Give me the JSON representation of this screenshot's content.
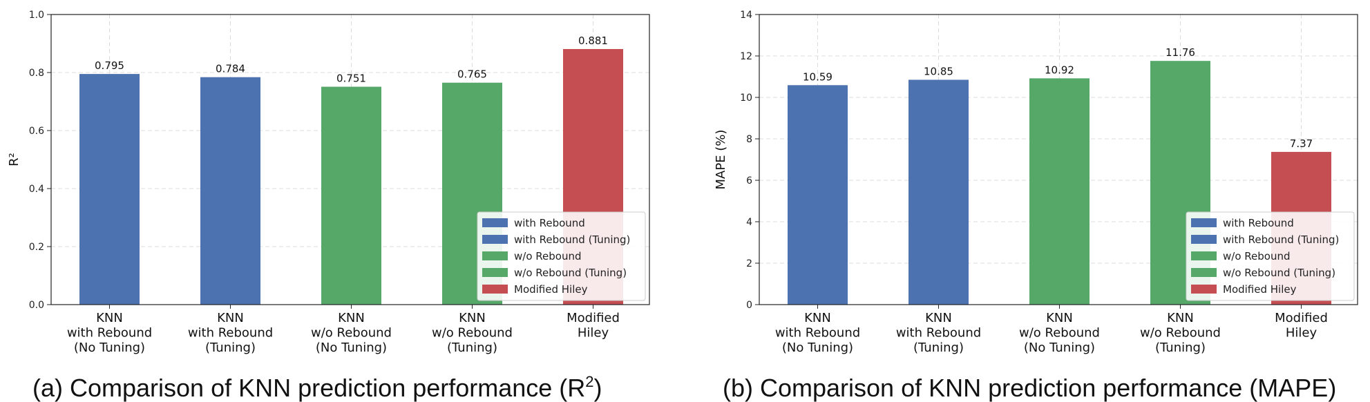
{
  "chart_data": [
    {
      "type": "bar",
      "title": "",
      "caption": {
        "prefix": "(a) Comparison of KNN prediction performance (R",
        "superscript": "2",
        "suffix": ")"
      },
      "xlabel": "",
      "ylabel": "R²",
      "ylim": [
        0,
        1.0
      ],
      "yticks": [
        "0.0",
        "0.2",
        "0.4",
        "0.6",
        "0.8",
        "1.0"
      ],
      "ytick_values": [
        0,
        0.2,
        0.4,
        0.6,
        0.8,
        1.0
      ],
      "grid": true,
      "legend_position": "bottom-right",
      "categories": [
        [
          "KNN",
          "with Rebound",
          "(No Tuning)"
        ],
        [
          "KNN",
          "with Rebound",
          "(Tuning)"
        ],
        [
          "KNN",
          "w/o Rebound",
          "(No Tuning)"
        ],
        [
          "KNN",
          "w/o Rebound",
          "(Tuning)"
        ],
        [
          "Modified",
          "Hiley"
        ]
      ],
      "values": [
        0.795,
        0.784,
        0.751,
        0.765,
        0.881
      ],
      "value_labels": [
        "0.795",
        "0.784",
        "0.751",
        "0.765",
        "0.881"
      ],
      "bar_colors": [
        "#4c72b0",
        "#4c72b0",
        "#55a868",
        "#55a868",
        "#c44e52"
      ],
      "legend": [
        {
          "label": "with Rebound",
          "color": "#4c72b0"
        },
        {
          "label": "with Rebound (Tuning)",
          "color": "#4c72b0"
        },
        {
          "label": "w/o Rebound",
          "color": "#55a868"
        },
        {
          "label": "w/o Rebound (Tuning)",
          "color": "#55a868"
        },
        {
          "label": "Modified Hiley",
          "color": "#c44e52"
        }
      ]
    },
    {
      "type": "bar",
      "title": "",
      "caption": {
        "prefix": "(b) Comparison of KNN prediction performance (MAPE)",
        "superscript": "",
        "suffix": ""
      },
      "xlabel": "",
      "ylabel": "MAPE (%)",
      "ylim": [
        0,
        14
      ],
      "yticks": [
        "0",
        "2",
        "4",
        "6",
        "8",
        "10",
        "12",
        "14"
      ],
      "ytick_values": [
        0,
        2,
        4,
        6,
        8,
        10,
        12,
        14
      ],
      "grid": true,
      "legend_position": "bottom-right",
      "categories": [
        [
          "KNN",
          "with Rebound",
          "(No Tuning)"
        ],
        [
          "KNN",
          "with Rebound",
          "(Tuning)"
        ],
        [
          "KNN",
          "w/o Rebound",
          "(No Tuning)"
        ],
        [
          "KNN",
          "w/o Rebound",
          "(Tuning)"
        ],
        [
          "Modified",
          "Hiley"
        ]
      ],
      "values": [
        10.59,
        10.85,
        10.92,
        11.76,
        7.37
      ],
      "value_labels": [
        "10.59",
        "10.85",
        "10.92",
        "11.76",
        "7.37"
      ],
      "bar_colors": [
        "#4c72b0",
        "#4c72b0",
        "#55a868",
        "#55a868",
        "#c44e52"
      ],
      "legend": [
        {
          "label": "with Rebound",
          "color": "#4c72b0"
        },
        {
          "label": "with Rebound (Tuning)",
          "color": "#4c72b0"
        },
        {
          "label": "w/o Rebound",
          "color": "#55a868"
        },
        {
          "label": "w/o Rebound (Tuning)",
          "color": "#55a868"
        },
        {
          "label": "Modified Hiley",
          "color": "#c44e52"
        }
      ]
    }
  ]
}
